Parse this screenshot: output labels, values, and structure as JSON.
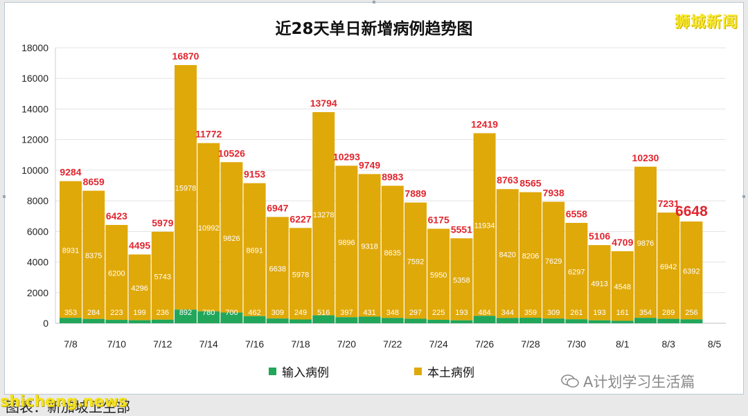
{
  "header": {
    "brand": "狮城新闻"
  },
  "footer": {
    "wechat_account": "A计划学习生活篇",
    "source_text": "图表：新加坡卫生部",
    "site_watermark": "shicheng.news"
  },
  "colors": {
    "imported": "#22a65a",
    "local": "#e0a90a",
    "total_label": "#e0262f",
    "grid": "#e3e3e3"
  },
  "chart_data": {
    "type": "bar",
    "stacked": true,
    "title": "近28天单日新增病例趋势图",
    "categories": [
      "7/8",
      "7/9",
      "7/10",
      "7/11",
      "7/12",
      "7/13",
      "7/14",
      "7/15",
      "7/16",
      "7/17",
      "7/18",
      "7/19",
      "7/20",
      "7/21",
      "7/22",
      "7/23",
      "7/24",
      "7/25",
      "7/26",
      "7/27",
      "7/28",
      "7/29",
      "7/30",
      "7/31",
      "8/1",
      "8/2",
      "8/3",
      "8/4"
    ],
    "x_tick_labels": [
      "7/8",
      "7/10",
      "7/12",
      "7/14",
      "7/16",
      "7/18",
      "7/20",
      "7/22",
      "7/24",
      "7/26",
      "7/28",
      "7/30",
      "8/1",
      "8/3",
      "8/5"
    ],
    "series": [
      {
        "name": "输入病例",
        "values": [
          353,
          284,
          223,
          199,
          236,
          892,
          780,
          700,
          462,
          309,
          249,
          516,
          397,
          431,
          348,
          297,
          225,
          193,
          484,
          344,
          359,
          309,
          261,
          193,
          161,
          354,
          289,
          256
        ]
      },
      {
        "name": "本土病例",
        "values": [
          8931,
          8375,
          6200,
          4296,
          5743,
          15978,
          10992,
          9826,
          8691,
          6638,
          5978,
          13278,
          9896,
          9318,
          8635,
          7592,
          5950,
          5358,
          11934,
          8420,
          8206,
          7629,
          6297,
          4913,
          4548,
          9876,
          6942,
          6392
        ]
      }
    ],
    "totals": [
      9284,
      8659,
      6423,
      4495,
      5979,
      16870,
      11772,
      10526,
      9153,
      6947,
      6227,
      13794,
      10293,
      9749,
      8983,
      7889,
      6175,
      5551,
      12419,
      8763,
      8565,
      7938,
      6558,
      5106,
      4709,
      10230,
      7231,
      6648
    ],
    "ylim": [
      0,
      18000
    ],
    "yticks": [
      0,
      2000,
      4000,
      6000,
      8000,
      10000,
      12000,
      14000,
      16000,
      18000
    ],
    "grid": true,
    "legend_position": "bottom"
  }
}
